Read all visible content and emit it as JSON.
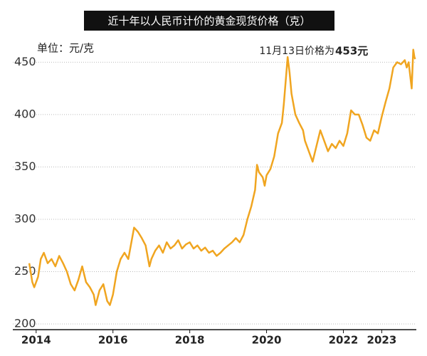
{
  "chart_data": {
    "type": "line",
    "title": "近十年以人民币计价的黄金现货价格（克）",
    "y_label": "单位：元/克",
    "annotation": [
      "11月13日价格为",
      "453元"
    ],
    "color": "#f0a520",
    "grid": true,
    "xlim": [
      2013.8,
      2023.9
    ],
    "xticks": [
      2014,
      2016,
      2018,
      2020,
      2022,
      2023
    ],
    "ylim": [
      200,
      470
    ],
    "yticks": [
      200,
      250,
      300,
      350,
      400,
      450
    ],
    "x": [
      2013.82,
      2013.9,
      2013.95,
      2014.05,
      2014.12,
      2014.2,
      2014.3,
      2014.4,
      2014.5,
      2014.6,
      2014.7,
      2014.8,
      2014.9,
      2015.0,
      2015.1,
      2015.2,
      2015.3,
      2015.4,
      2015.5,
      2015.55,
      2015.65,
      2015.75,
      2015.85,
      2015.92,
      2016.0,
      2016.1,
      2016.2,
      2016.3,
      2016.4,
      2016.5,
      2016.55,
      2016.65,
      2016.75,
      2016.85,
      2016.95,
      2017.0,
      2017.1,
      2017.2,
      2017.3,
      2017.4,
      2017.5,
      2017.6,
      2017.7,
      2017.8,
      2017.9,
      2018.0,
      2018.1,
      2018.2,
      2018.3,
      2018.4,
      2018.5,
      2018.6,
      2018.7,
      2018.8,
      2018.9,
      2019.0,
      2019.1,
      2019.2,
      2019.3,
      2019.4,
      2019.5,
      2019.6,
      2019.7,
      2019.75,
      2019.8,
      2019.9,
      2019.95,
      2020.0,
      2020.1,
      2020.2,
      2020.3,
      2020.4,
      2020.45,
      2020.55,
      2020.6,
      2020.65,
      2020.75,
      2020.85,
      2020.95,
      2021.0,
      2021.1,
      2021.2,
      2021.3,
      2021.4,
      2021.5,
      2021.6,
      2021.7,
      2021.8,
      2021.9,
      2022.0,
      2022.1,
      2022.2,
      2022.3,
      2022.4,
      2022.5,
      2022.6,
      2022.7,
      2022.8,
      2022.9,
      2023.0,
      2023.1,
      2023.2,
      2023.3,
      2023.4,
      2023.5,
      2023.6,
      2023.65,
      2023.7,
      2023.78,
      2023.82,
      2023.85,
      2023.87
    ],
    "values": [
      258,
      240,
      235,
      245,
      262,
      268,
      258,
      262,
      255,
      265,
      258,
      250,
      238,
      232,
      242,
      255,
      240,
      235,
      228,
      218,
      232,
      238,
      222,
      218,
      228,
      250,
      262,
      268,
      262,
      282,
      292,
      288,
      282,
      275,
      255,
      262,
      270,
      275,
      268,
      278,
      272,
      275,
      280,
      272,
      276,
      278,
      272,
      275,
      270,
      273,
      268,
      270,
      265,
      268,
      272,
      275,
      278,
      282,
      278,
      285,
      300,
      312,
      328,
      352,
      345,
      340,
      332,
      342,
      348,
      360,
      382,
      392,
      410,
      455,
      440,
      420,
      400,
      392,
      385,
      375,
      365,
      355,
      370,
      385,
      375,
      365,
      372,
      368,
      375,
      370,
      382,
      404,
      400,
      400,
      390,
      378,
      375,
      385,
      382,
      398,
      412,
      425,
      445,
      450,
      448,
      452,
      445,
      450,
      425,
      462,
      455,
      453
    ]
  }
}
